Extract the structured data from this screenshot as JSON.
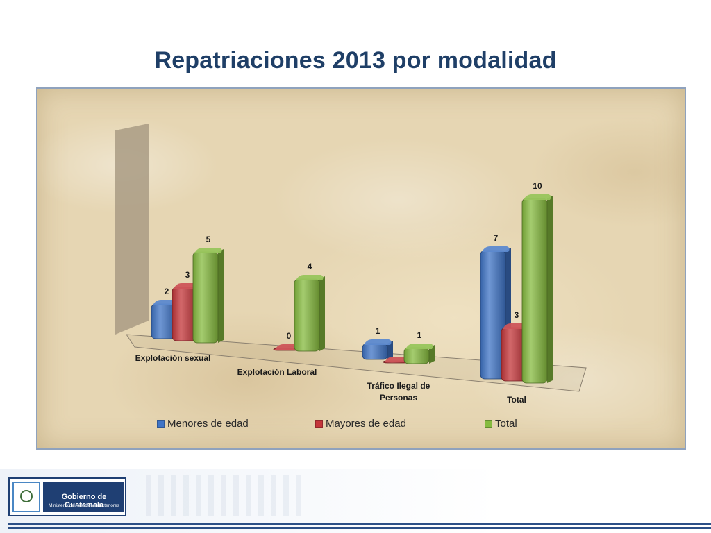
{
  "slide": {
    "title": "Repatriaciones 2013 por modalidad"
  },
  "chart_data": {
    "type": "bar",
    "style": "3d-clustered-column",
    "categories": [
      "Explotación sexual",
      "Explotación Laboral",
      "Tráfico Ilegal de Personas",
      "Total"
    ],
    "series": [
      {
        "name": "Menores de edad",
        "values": [
          2,
          null,
          1,
          7
        ],
        "data_labels": [
          "2",
          "",
          "1",
          "7"
        ],
        "color": "#3f74c6"
      },
      {
        "name": "Mayores de edad",
        "values": [
          3,
          0,
          0,
          3
        ],
        "data_labels": [
          "3",
          "0",
          "",
          "3"
        ],
        "color": "#c4363a"
      },
      {
        "name": "Total",
        "values": [
          5,
          4,
          1,
          10
        ],
        "data_labels": [
          "5",
          "4",
          "1",
          "10"
        ],
        "color": "#86bb3f"
      }
    ],
    "category_labels": [
      [
        "Explotación sexual"
      ],
      [
        "Explotación Laboral"
      ],
      [
        "Tráfico Ilegal de",
        "Personas"
      ],
      [
        "Total"
      ]
    ],
    "ylim": [
      0,
      10
    ],
    "grid": false,
    "legend_position": "bottom",
    "background": "parchment"
  },
  "footer": {
    "logo_name": "Gobierno de Guatemala",
    "logo_ministry": "Ministerio de Relaciones Exteriores"
  }
}
